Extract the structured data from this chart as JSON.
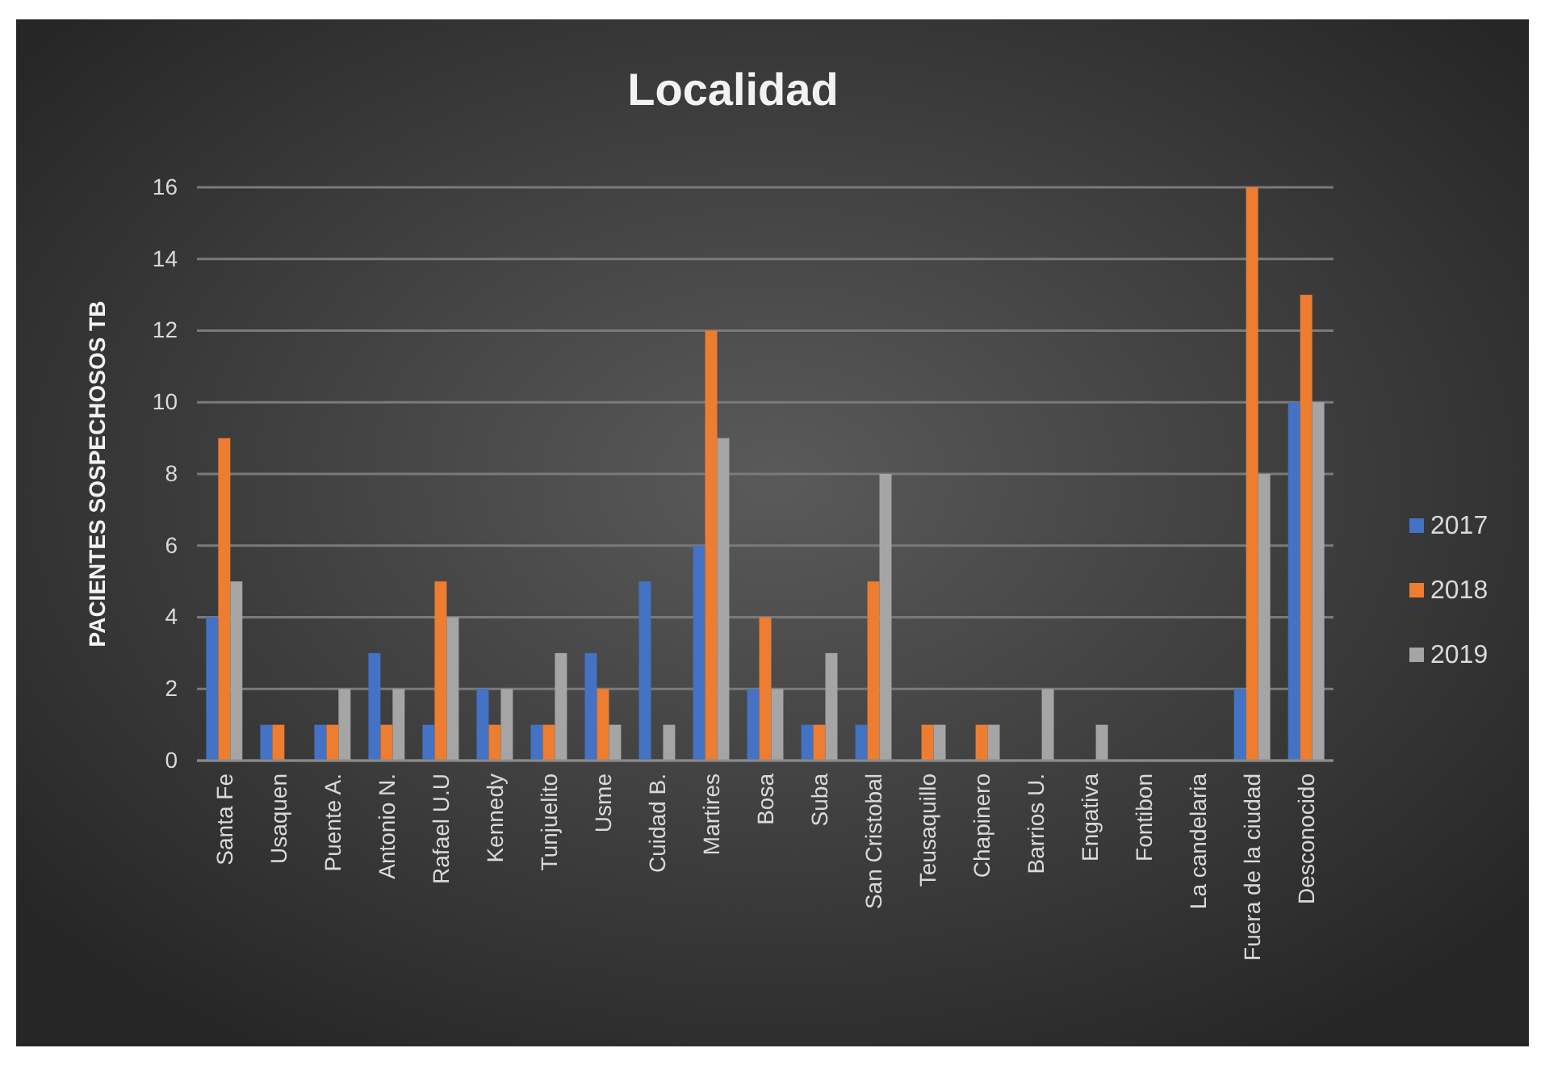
{
  "chart_data": {
    "type": "bar",
    "title": "Localidad",
    "ylabel": "PACIENTES SOSPECHOSOS TB",
    "categories": [
      "Santa Fe",
      "Usaquen",
      "Puente A.",
      "Antonio N.",
      "Rafael U.U",
      "Kennedy",
      "Tunjuelito",
      "Usme",
      "Cuidad B.",
      "Martires",
      "Bosa",
      "Suba",
      "San Cristobal",
      "Teusaquillo",
      "Chapinero",
      "Barrios U.",
      "Engativa",
      "Fontibon",
      "La candelaria",
      "Fuera de la ciudad",
      "Desconocido"
    ],
    "series": [
      {
        "name": "2017",
        "color": "#4472c4",
        "values": [
          4,
          1,
          1,
          3,
          1,
          2,
          1,
          3,
          5,
          6,
          2,
          1,
          1,
          0,
          0,
          0,
          0,
          0,
          0,
          2,
          10
        ]
      },
      {
        "name": "2018",
        "color": "#ed7d31",
        "values": [
          9,
          1,
          1,
          1,
          5,
          1,
          1,
          2,
          0,
          12,
          4,
          1,
          5,
          1,
          1,
          0,
          0,
          0,
          0,
          16,
          13
        ]
      },
      {
        "name": "2019",
        "color": "#a5a5a5",
        "values": [
          5,
          0,
          2,
          2,
          4,
          2,
          3,
          1,
          1,
          9,
          2,
          3,
          8,
          1,
          1,
          2,
          1,
          0,
          0,
          8,
          10
        ]
      }
    ],
    "ylim": [
      0,
      16
    ],
    "yticks": [
      0,
      2,
      4,
      6,
      8,
      10,
      12,
      14,
      16
    ],
    "grid": "y",
    "legend": "right"
  }
}
